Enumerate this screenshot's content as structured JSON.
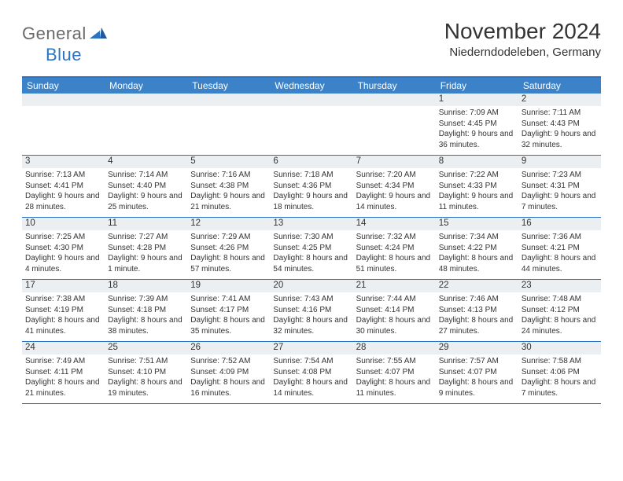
{
  "brand": {
    "name": "General",
    "suffix": "Blue"
  },
  "title": "November 2024",
  "location": "Niederndodeleben, Germany",
  "colors": {
    "accent": "#2d73c4",
    "header_bg": "#3b82c9",
    "strip_bg": "#eceff1",
    "text": "#333333",
    "logo_gray": "#6a6a6a"
  },
  "weekdays": [
    "Sunday",
    "Monday",
    "Tuesday",
    "Wednesday",
    "Thursday",
    "Friday",
    "Saturday"
  ],
  "weeks": [
    {
      "nums": [
        "",
        "",
        "",
        "",
        "",
        "1",
        "2"
      ],
      "cells": [
        null,
        null,
        null,
        null,
        null,
        {
          "sunrise": "Sunrise: 7:09 AM",
          "sunset": "Sunset: 4:45 PM",
          "day": "Daylight: 9 hours and 36 minutes."
        },
        {
          "sunrise": "Sunrise: 7:11 AM",
          "sunset": "Sunset: 4:43 PM",
          "day": "Daylight: 9 hours and 32 minutes."
        }
      ]
    },
    {
      "nums": [
        "3",
        "4",
        "5",
        "6",
        "7",
        "8",
        "9"
      ],
      "cells": [
        {
          "sunrise": "Sunrise: 7:13 AM",
          "sunset": "Sunset: 4:41 PM",
          "day": "Daylight: 9 hours and 28 minutes."
        },
        {
          "sunrise": "Sunrise: 7:14 AM",
          "sunset": "Sunset: 4:40 PM",
          "day": "Daylight: 9 hours and 25 minutes."
        },
        {
          "sunrise": "Sunrise: 7:16 AM",
          "sunset": "Sunset: 4:38 PM",
          "day": "Daylight: 9 hours and 21 minutes."
        },
        {
          "sunrise": "Sunrise: 7:18 AM",
          "sunset": "Sunset: 4:36 PM",
          "day": "Daylight: 9 hours and 18 minutes."
        },
        {
          "sunrise": "Sunrise: 7:20 AM",
          "sunset": "Sunset: 4:34 PM",
          "day": "Daylight: 9 hours and 14 minutes."
        },
        {
          "sunrise": "Sunrise: 7:22 AM",
          "sunset": "Sunset: 4:33 PM",
          "day": "Daylight: 9 hours and 11 minutes."
        },
        {
          "sunrise": "Sunrise: 7:23 AM",
          "sunset": "Sunset: 4:31 PM",
          "day": "Daylight: 9 hours and 7 minutes."
        }
      ]
    },
    {
      "nums": [
        "10",
        "11",
        "12",
        "13",
        "14",
        "15",
        "16"
      ],
      "cells": [
        {
          "sunrise": "Sunrise: 7:25 AM",
          "sunset": "Sunset: 4:30 PM",
          "day": "Daylight: 9 hours and 4 minutes."
        },
        {
          "sunrise": "Sunrise: 7:27 AM",
          "sunset": "Sunset: 4:28 PM",
          "day": "Daylight: 9 hours and 1 minute."
        },
        {
          "sunrise": "Sunrise: 7:29 AM",
          "sunset": "Sunset: 4:26 PM",
          "day": "Daylight: 8 hours and 57 minutes."
        },
        {
          "sunrise": "Sunrise: 7:30 AM",
          "sunset": "Sunset: 4:25 PM",
          "day": "Daylight: 8 hours and 54 minutes."
        },
        {
          "sunrise": "Sunrise: 7:32 AM",
          "sunset": "Sunset: 4:24 PM",
          "day": "Daylight: 8 hours and 51 minutes."
        },
        {
          "sunrise": "Sunrise: 7:34 AM",
          "sunset": "Sunset: 4:22 PM",
          "day": "Daylight: 8 hours and 48 minutes."
        },
        {
          "sunrise": "Sunrise: 7:36 AM",
          "sunset": "Sunset: 4:21 PM",
          "day": "Daylight: 8 hours and 44 minutes."
        }
      ]
    },
    {
      "nums": [
        "17",
        "18",
        "19",
        "20",
        "21",
        "22",
        "23"
      ],
      "cells": [
        {
          "sunrise": "Sunrise: 7:38 AM",
          "sunset": "Sunset: 4:19 PM",
          "day": "Daylight: 8 hours and 41 minutes."
        },
        {
          "sunrise": "Sunrise: 7:39 AM",
          "sunset": "Sunset: 4:18 PM",
          "day": "Daylight: 8 hours and 38 minutes."
        },
        {
          "sunrise": "Sunrise: 7:41 AM",
          "sunset": "Sunset: 4:17 PM",
          "day": "Daylight: 8 hours and 35 minutes."
        },
        {
          "sunrise": "Sunrise: 7:43 AM",
          "sunset": "Sunset: 4:16 PM",
          "day": "Daylight: 8 hours and 32 minutes."
        },
        {
          "sunrise": "Sunrise: 7:44 AM",
          "sunset": "Sunset: 4:14 PM",
          "day": "Daylight: 8 hours and 30 minutes."
        },
        {
          "sunrise": "Sunrise: 7:46 AM",
          "sunset": "Sunset: 4:13 PM",
          "day": "Daylight: 8 hours and 27 minutes."
        },
        {
          "sunrise": "Sunrise: 7:48 AM",
          "sunset": "Sunset: 4:12 PM",
          "day": "Daylight: 8 hours and 24 minutes."
        }
      ]
    },
    {
      "nums": [
        "24",
        "25",
        "26",
        "27",
        "28",
        "29",
        "30"
      ],
      "cells": [
        {
          "sunrise": "Sunrise: 7:49 AM",
          "sunset": "Sunset: 4:11 PM",
          "day": "Daylight: 8 hours and 21 minutes."
        },
        {
          "sunrise": "Sunrise: 7:51 AM",
          "sunset": "Sunset: 4:10 PM",
          "day": "Daylight: 8 hours and 19 minutes."
        },
        {
          "sunrise": "Sunrise: 7:52 AM",
          "sunset": "Sunset: 4:09 PM",
          "day": "Daylight: 8 hours and 16 minutes."
        },
        {
          "sunrise": "Sunrise: 7:54 AM",
          "sunset": "Sunset: 4:08 PM",
          "day": "Daylight: 8 hours and 14 minutes."
        },
        {
          "sunrise": "Sunrise: 7:55 AM",
          "sunset": "Sunset: 4:07 PM",
          "day": "Daylight: 8 hours and 11 minutes."
        },
        {
          "sunrise": "Sunrise: 7:57 AM",
          "sunset": "Sunset: 4:07 PM",
          "day": "Daylight: 8 hours and 9 minutes."
        },
        {
          "sunrise": "Sunrise: 7:58 AM",
          "sunset": "Sunset: 4:06 PM",
          "day": "Daylight: 8 hours and 7 minutes."
        }
      ]
    }
  ]
}
